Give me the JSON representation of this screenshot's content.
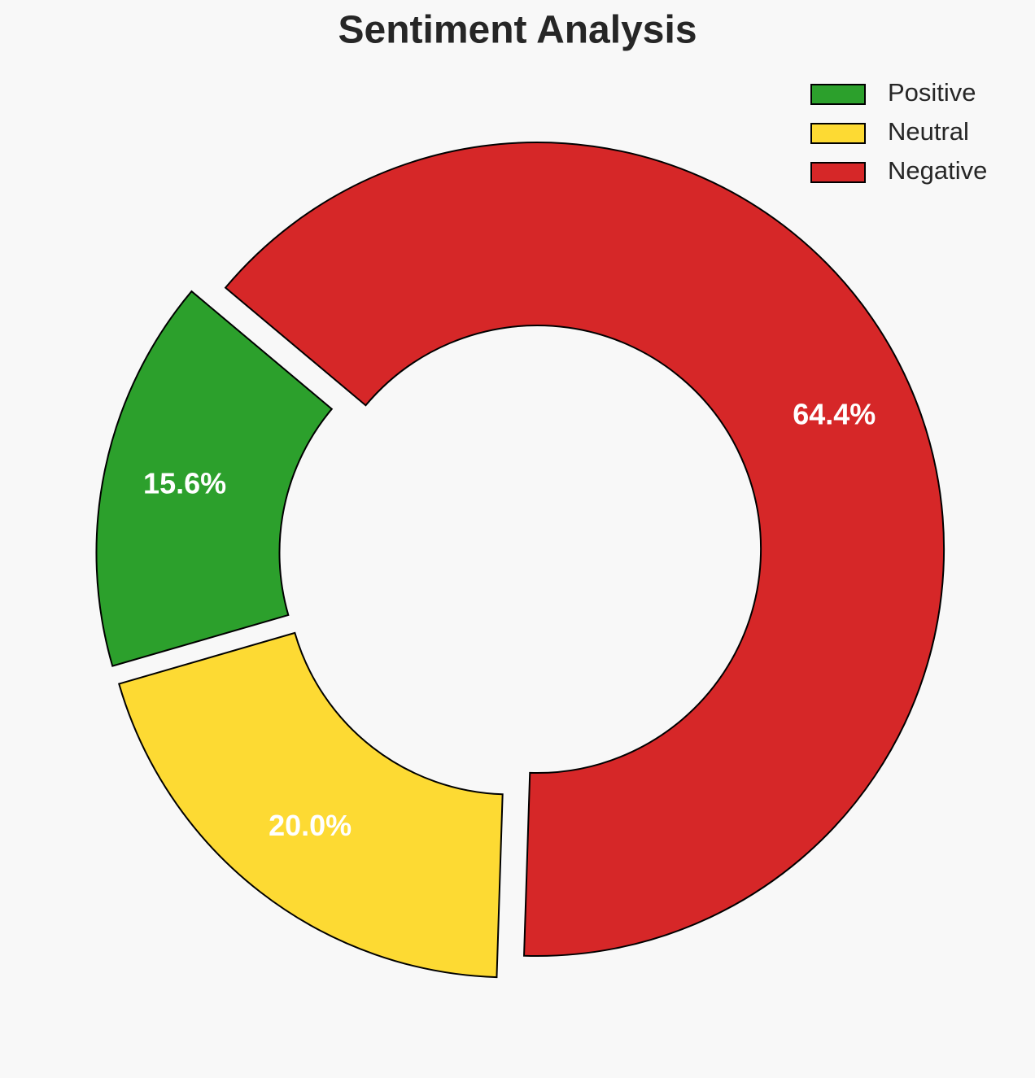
{
  "chart_data": {
    "type": "pie",
    "title": "Sentiment Analysis",
    "categories": [
      "Positive",
      "Neutral",
      "Negative"
    ],
    "values": [
      15.6,
      20.0,
      64.4
    ],
    "value_labels": [
      "15.6%",
      "20.0%",
      "64.4%"
    ],
    "colors": [
      "#2ca02c",
      "#fdda33",
      "#d62728"
    ],
    "legend": "upper right"
  }
}
